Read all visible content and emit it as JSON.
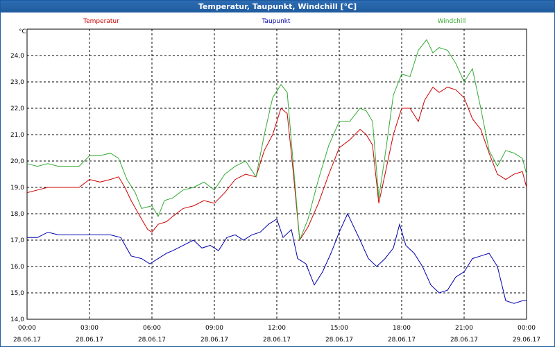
{
  "window": {
    "title": "Temperatur, Taupunkt, Windchill [°C]"
  },
  "chart_data": {
    "type": "line",
    "title": "Temperatur, Taupunkt, Windchill [°C]",
    "ylabel": "°C",
    "ylim": [
      14.0,
      25.0
    ],
    "yticks": [
      "14,0",
      "15,0",
      "16,0",
      "17,0",
      "18,0",
      "19,0",
      "20,0",
      "21,0",
      "22,0",
      "23,0",
      "24,0"
    ],
    "xlim": [
      0,
      24
    ],
    "xticks": [
      {
        "time": "00:00",
        "date": "28.06.17"
      },
      {
        "time": "03:00",
        "date": "28.06.17"
      },
      {
        "time": "06:00",
        "date": "28.06.17"
      },
      {
        "time": "09:00",
        "date": "28.06.17"
      },
      {
        "time": "12:00",
        "date": "28.06.17"
      },
      {
        "time": "15:00",
        "date": "28.06.17"
      },
      {
        "time": "18:00",
        "date": "28.06.17"
      },
      {
        "time": "21:00",
        "date": "28.06.17"
      },
      {
        "time": "00:00",
        "date": "29.06.17"
      }
    ],
    "grid": true,
    "series": [
      {
        "name": "Temperatur",
        "color": "#cc0000",
        "points": [
          [
            0,
            18.8
          ],
          [
            0.5,
            18.9
          ],
          [
            1,
            19.0
          ],
          [
            1.5,
            19.0
          ],
          [
            2,
            19.0
          ],
          [
            2.5,
            19.0
          ],
          [
            3,
            19.3
          ],
          [
            3.5,
            19.2
          ],
          [
            4,
            19.3
          ],
          [
            4.4,
            19.4
          ],
          [
            4.7,
            19.0
          ],
          [
            5,
            18.5
          ],
          [
            5.5,
            17.8
          ],
          [
            5.8,
            17.4
          ],
          [
            6,
            17.3
          ],
          [
            6.3,
            17.6
          ],
          [
            6.7,
            17.7
          ],
          [
            7,
            17.9
          ],
          [
            7.5,
            18.2
          ],
          [
            8,
            18.3
          ],
          [
            8.5,
            18.5
          ],
          [
            9,
            18.4
          ],
          [
            9.5,
            18.8
          ],
          [
            10,
            19.3
          ],
          [
            10.5,
            19.5
          ],
          [
            11,
            19.4
          ],
          [
            11.4,
            20.4
          ],
          [
            11.8,
            21.0
          ],
          [
            12.2,
            22.0
          ],
          [
            12.5,
            21.8
          ],
          [
            12.8,
            19.5
          ],
          [
            13.1,
            17.0
          ],
          [
            13.5,
            17.5
          ],
          [
            14,
            18.4
          ],
          [
            14.5,
            19.5
          ],
          [
            15,
            20.5
          ],
          [
            15.5,
            20.8
          ],
          [
            16,
            21.2
          ],
          [
            16.3,
            21.0
          ],
          [
            16.6,
            20.6
          ],
          [
            16.9,
            18.4
          ],
          [
            17.2,
            19.5
          ],
          [
            17.6,
            21.0
          ],
          [
            18,
            22.0
          ],
          [
            18.4,
            22.0
          ],
          [
            18.8,
            21.5
          ],
          [
            19.1,
            22.3
          ],
          [
            19.5,
            22.8
          ],
          [
            19.8,
            22.6
          ],
          [
            20.2,
            22.8
          ],
          [
            20.6,
            22.7
          ],
          [
            21,
            22.4
          ],
          [
            21.4,
            21.6
          ],
          [
            21.8,
            21.2
          ],
          [
            22.2,
            20.3
          ],
          [
            22.6,
            19.5
          ],
          [
            23,
            19.3
          ],
          [
            23.4,
            19.5
          ],
          [
            23.8,
            19.6
          ],
          [
            24,
            19.0
          ]
        ]
      },
      {
        "name": "Taupunkt",
        "color": "#0000aa",
        "points": [
          [
            0,
            17.1
          ],
          [
            0.5,
            17.1
          ],
          [
            1,
            17.3
          ],
          [
            1.5,
            17.2
          ],
          [
            2,
            17.2
          ],
          [
            2.5,
            17.2
          ],
          [
            3,
            17.2
          ],
          [
            3.5,
            17.2
          ],
          [
            4,
            17.2
          ],
          [
            4.5,
            17.1
          ],
          [
            5,
            16.4
          ],
          [
            5.5,
            16.3
          ],
          [
            5.9,
            16.1
          ],
          [
            6.3,
            16.3
          ],
          [
            6.7,
            16.5
          ],
          [
            7,
            16.6
          ],
          [
            7.5,
            16.8
          ],
          [
            8,
            17.0
          ],
          [
            8.4,
            16.7
          ],
          [
            8.8,
            16.8
          ],
          [
            9.2,
            16.6
          ],
          [
            9.6,
            17.1
          ],
          [
            10,
            17.2
          ],
          [
            10.4,
            17.0
          ],
          [
            10.8,
            17.2
          ],
          [
            11.2,
            17.3
          ],
          [
            11.6,
            17.6
          ],
          [
            12,
            17.8
          ],
          [
            12.3,
            17.1
          ],
          [
            12.7,
            17.4
          ],
          [
            13,
            16.3
          ],
          [
            13.4,
            16.1
          ],
          [
            13.8,
            15.3
          ],
          [
            14.2,
            15.8
          ],
          [
            14.6,
            16.5
          ],
          [
            15,
            17.3
          ],
          [
            15.4,
            18.0
          ],
          [
            15.7,
            17.5
          ],
          [
            16,
            17.0
          ],
          [
            16.4,
            16.3
          ],
          [
            16.8,
            16.0
          ],
          [
            17.2,
            16.3
          ],
          [
            17.6,
            16.7
          ],
          [
            17.9,
            17.6
          ],
          [
            18.2,
            16.8
          ],
          [
            18.6,
            16.5
          ],
          [
            19,
            16.0
          ],
          [
            19.4,
            15.3
          ],
          [
            19.8,
            15.0
          ],
          [
            20.2,
            15.1
          ],
          [
            20.6,
            15.6
          ],
          [
            21,
            15.8
          ],
          [
            21.4,
            16.3
          ],
          [
            21.8,
            16.4
          ],
          [
            22.2,
            16.5
          ],
          [
            22.6,
            16.0
          ],
          [
            23,
            14.7
          ],
          [
            23.4,
            14.6
          ],
          [
            23.8,
            14.7
          ],
          [
            24,
            14.7
          ]
        ]
      },
      {
        "name": "Windchill",
        "color": "#33aa33",
        "points": [
          [
            0,
            19.9
          ],
          [
            0.5,
            19.8
          ],
          [
            1,
            19.9
          ],
          [
            1.5,
            19.8
          ],
          [
            2,
            19.8
          ],
          [
            2.5,
            19.8
          ],
          [
            3,
            20.2
          ],
          [
            3.5,
            20.2
          ],
          [
            4,
            20.3
          ],
          [
            4.4,
            20.1
          ],
          [
            4.8,
            19.3
          ],
          [
            5.2,
            18.8
          ],
          [
            5.5,
            18.2
          ],
          [
            6,
            18.3
          ],
          [
            6.3,
            17.9
          ],
          [
            6.6,
            18.5
          ],
          [
            7,
            18.6
          ],
          [
            7.5,
            18.9
          ],
          [
            8,
            19.0
          ],
          [
            8.5,
            19.2
          ],
          [
            9,
            18.9
          ],
          [
            9.5,
            19.5
          ],
          [
            10,
            19.8
          ],
          [
            10.5,
            20.0
          ],
          [
            11,
            19.4
          ],
          [
            11.4,
            21.0
          ],
          [
            11.8,
            22.4
          ],
          [
            12.2,
            22.9
          ],
          [
            12.5,
            22.6
          ],
          [
            12.8,
            19.8
          ],
          [
            13.1,
            17.0
          ],
          [
            13.5,
            17.8
          ],
          [
            14,
            19.3
          ],
          [
            14.5,
            20.6
          ],
          [
            15,
            21.5
          ],
          [
            15.5,
            21.5
          ],
          [
            16,
            22.0
          ],
          [
            16.3,
            21.9
          ],
          [
            16.6,
            21.5
          ],
          [
            16.9,
            18.6
          ],
          [
            17.2,
            20.2
          ],
          [
            17.6,
            22.5
          ],
          [
            18,
            23.3
          ],
          [
            18.4,
            23.2
          ],
          [
            18.8,
            24.2
          ],
          [
            19.2,
            24.6
          ],
          [
            19.5,
            24.1
          ],
          [
            19.8,
            24.3
          ],
          [
            20.2,
            24.2
          ],
          [
            20.6,
            23.7
          ],
          [
            21,
            23.0
          ],
          [
            21.4,
            23.5
          ],
          [
            21.8,
            22.0
          ],
          [
            22.2,
            20.4
          ],
          [
            22.6,
            19.8
          ],
          [
            23,
            20.4
          ],
          [
            23.4,
            20.3
          ],
          [
            23.8,
            20.1
          ],
          [
            24,
            19.5
          ]
        ]
      }
    ]
  }
}
